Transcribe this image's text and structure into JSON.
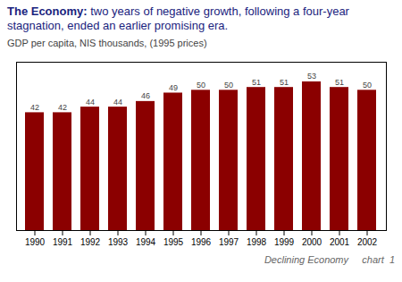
{
  "chart_data": {
    "type": "bar",
    "title": "The Economy:",
    "subtitle": "two years of negative growth, following a four-year stagnation, ended an earlier promising era.",
    "y_label": "GDP per capita, NIS thousands, (1995 prices)",
    "caption": "Declining Economy     chart  1",
    "categories": [
      "1990",
      "1991",
      "1992",
      "1993",
      "1994",
      "1995",
      "1996",
      "1997",
      "1998",
      "1999",
      "2000",
      "2001",
      "2002"
    ],
    "values": [
      42,
      42,
      44,
      44,
      46,
      49,
      50,
      50,
      51,
      51,
      53,
      51,
      50
    ],
    "color": "#8B0000",
    "ylim": [
      0,
      60
    ],
    "data_labels": true,
    "tick_labels": "x",
    "grid": false
  }
}
